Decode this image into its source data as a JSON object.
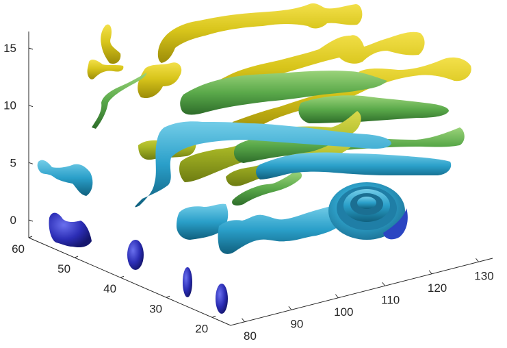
{
  "chart_data": {
    "type": "3d-streamtube",
    "title": "",
    "xlabel": "",
    "ylabel": "",
    "zlabel": "",
    "xlim": [
      75,
      135
    ],
    "ylim": [
      15,
      60
    ],
    "zlim": [
      -2,
      16
    ],
    "x_ticks": [
      80,
      90,
      100,
      110,
      120,
      130
    ],
    "y_ticks": [
      20,
      30,
      40,
      50,
      60
    ],
    "z_ticks": [
      0,
      5,
      10,
      15
    ],
    "x_tick_labels": [
      "80",
      "90",
      "100",
      "110",
      "120",
      "130"
    ],
    "y_tick_labels": [
      "20",
      "30",
      "40",
      "50",
      "60"
    ],
    "z_tick_labels": [
      "0",
      "5",
      "10",
      "15"
    ],
    "colormap": [
      "#2b2ba8",
      "#2e8bd6",
      "#27a9c9",
      "#6db84a",
      "#b6bd2a",
      "#e2cf1a"
    ],
    "grid": false,
    "legend": "none",
    "series": [
      {
        "color": "#d9c81c",
        "level": 15,
        "x": [
          95,
          105,
          115,
          125,
          132
        ],
        "y": [
          52,
          50,
          48,
          47,
          46
        ],
        "z": [
          15,
          15,
          14.8,
          14.5,
          14.2
        ]
      },
      {
        "color": "#d6c61c",
        "level": 14,
        "x": [
          90,
          100,
          110,
          120,
          130
        ],
        "y": [
          42,
          40,
          38,
          36,
          35
        ],
        "z": [
          13.5,
          13.6,
          13.4,
          13.2,
          13.0
        ]
      },
      {
        "color": "#d6c61c",
        "level": 13,
        "x": [
          88,
          98,
          108,
          118,
          128
        ],
        "y": [
          36,
          34,
          33,
          31,
          30
        ],
        "z": [
          12,
          12.2,
          12.3,
          12.1,
          12.0
        ]
      },
      {
        "color": "#79b840",
        "level": 11,
        "x": [
          90,
          100,
          110,
          120,
          130
        ],
        "y": [
          40,
          37,
          34,
          32,
          30
        ],
        "z": [
          10.5,
          10.6,
          10.4,
          10.2,
          10.0
        ]
      },
      {
        "color": "#5aae52",
        "level": 9,
        "x": [
          92,
          102,
          112,
          122,
          132
        ],
        "y": [
          36,
          34,
          32,
          30,
          28
        ],
        "z": [
          8.8,
          8.9,
          8.7,
          8.5,
          8.2
        ]
      },
      {
        "color": "#8ab83a",
        "level": 8,
        "x": [
          85,
          95,
          105,
          115,
          125
        ],
        "y": [
          44,
          42,
          40,
          38,
          36
        ],
        "z": [
          7.8,
          7.6,
          7.5,
          7.3,
          7.1
        ]
      },
      {
        "color": "#2fa0c8",
        "level": 6,
        "x": [
          90,
          100,
          110,
          120,
          130
        ],
        "y": [
          40,
          38,
          35,
          33,
          31
        ],
        "z": [
          6.2,
          6.0,
          5.8,
          5.7,
          5.5
        ]
      },
      {
        "color": "#2c9bc8",
        "level": 3,
        "x": [
          85,
          95,
          105,
          115,
          125
        ],
        "y": [
          35,
          33,
          31,
          29,
          27
        ],
        "z": [
          3.0,
          2.8,
          2.7,
          2.6,
          2.4
        ]
      },
      {
        "color": "#2f96cc",
        "level": 0,
        "x": [
          85,
          95,
          105,
          115,
          125
        ],
        "y": [
          30,
          28,
          27,
          26,
          25
        ],
        "z": [
          0.2,
          0.0,
          0.0,
          0.1,
          0.3
        ]
      },
      {
        "color": "#2a2ab0",
        "level": -1,
        "x": [
          78,
          82,
          86,
          90
        ],
        "y": [
          55,
          40,
          30,
          22
        ],
        "z": [
          0,
          -1,
          -1.5,
          -2
        ]
      }
    ]
  }
}
